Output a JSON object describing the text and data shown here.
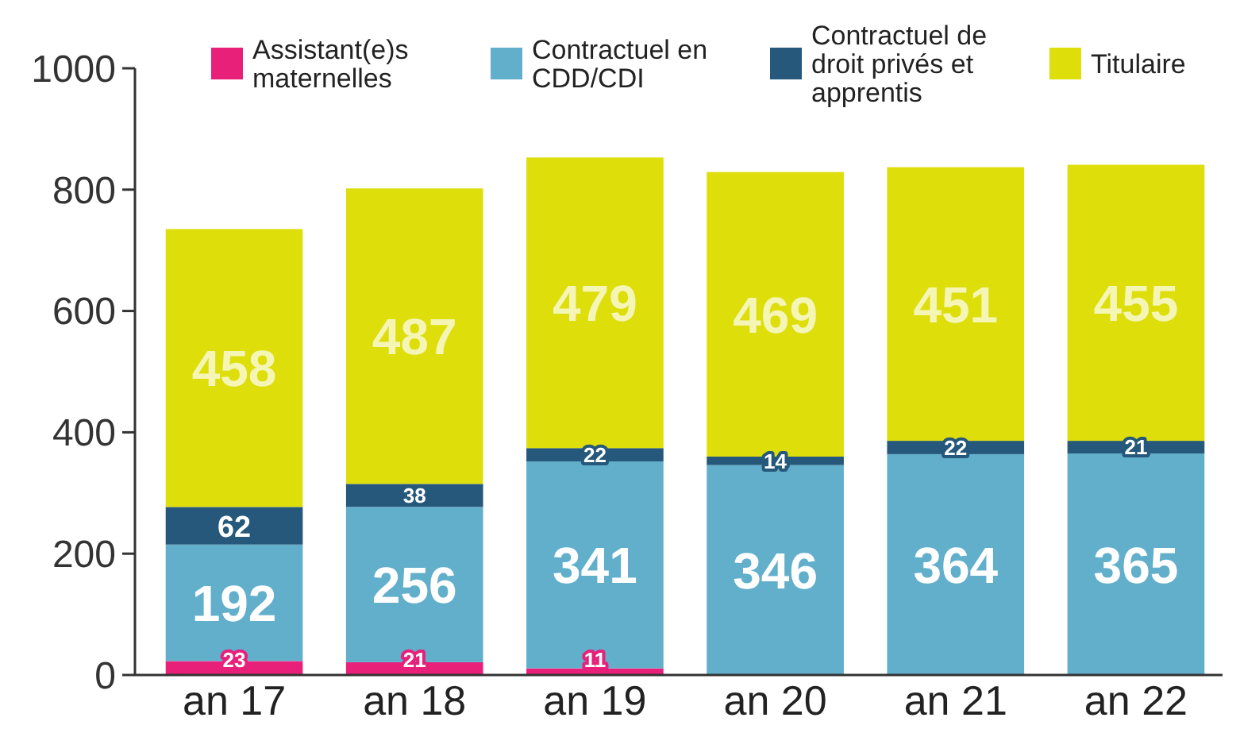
{
  "chart_data": {
    "type": "bar",
    "stacked": true,
    "categories": [
      "an 17",
      "an 18",
      "an 19",
      "an 20",
      "an 21",
      "an 22"
    ],
    "series": [
      {
        "name": "Assistant(e)s maternelles",
        "color": "#e8207a",
        "values": [
          23,
          21,
          11,
          null,
          null,
          null
        ]
      },
      {
        "name": "Contractuel en CDD/CDI",
        "color": "#62afcb",
        "values": [
          192,
          256,
          341,
          346,
          364,
          365
        ]
      },
      {
        "name": "Contractuel de droit privés et apprentis",
        "color": "#25587a",
        "values": [
          62,
          38,
          22,
          14,
          22,
          21
        ]
      },
      {
        "name": "Titulaire",
        "color": "#dede0b",
        "values": [
          458,
          487,
          479,
          469,
          451,
          455
        ]
      }
    ],
    "ylim": [
      0,
      1000
    ],
    "yticks": [
      0,
      200,
      400,
      600,
      800,
      1000
    ],
    "grid": false,
    "legend": "top",
    "data_labels": true
  }
}
